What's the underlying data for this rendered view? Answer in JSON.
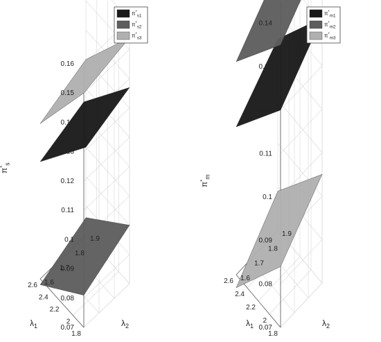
{
  "chart_data": [
    {
      "type": "surface3d",
      "zlabel": "π*s",
      "xlabel": "λ1",
      "ylabel": "λ2",
      "x_ticks": [
        "1.8",
        "2",
        "2.2",
        "2.4",
        "2.6"
      ],
      "y_ticks": [
        "1.6",
        "1.7",
        "1.8",
        "1.9"
      ],
      "z_ticks": [
        "0.07",
        "0.08",
        "0.09",
        "0.1",
        "0.11",
        "0.12",
        "0.13",
        "0.14",
        "0.15",
        "0.16"
      ],
      "xlim": [
        1.8,
        2.6
      ],
      "ylim": [
        1.6,
        1.9
      ],
      "zlim": [
        0.07,
        0.16
      ],
      "legend": [
        "π*s1",
        "π*s2",
        "π*s3"
      ],
      "legend_position": "top-right",
      "grid": true,
      "series": [
        {
          "name": "π*s1",
          "color": "#1a1a1a",
          "corners": {
            "x1.8_y1.6": 0.147,
            "x2.6_y1.6": 0.11,
            "x1.8_y1.9": 0.137,
            "x2.6_y1.9": 0.1
          }
        },
        {
          "name": "π*s2",
          "color": "#5e5e5e",
          "corners": {
            "x1.8_y1.6": 0.081,
            "x2.6_y1.6": 0.068,
            "x1.8_y1.9": 0.09,
            "x2.6_y1.9": 0.076
          }
        },
        {
          "name": "π*s3",
          "color": "#b0b0b0",
          "corners": {
            "x1.8_y1.6": 0.15,
            "x2.6_y1.6": 0.123,
            "x1.8_y1.9": 0.154,
            "x2.6_y1.9": 0.13
          }
        }
      ]
    },
    {
      "type": "surface3d",
      "zlabel": "π*m",
      "xlabel": "λ1",
      "ylabel": "λ2",
      "x_ticks": [
        "1.8",
        "2",
        "2.2",
        "2.4",
        "2.6"
      ],
      "y_ticks": [
        "1.6",
        "1.7",
        "1.8",
        "1.9"
      ],
      "z_ticks": [
        "0.07",
        "0.08",
        "0.09",
        "0.1",
        "0.11",
        "0.12",
        "0.13",
        "0.14"
      ],
      "xlim": [
        1.8,
        2.6
      ],
      "ylim": [
        1.6,
        1.9
      ],
      "zlim": [
        0.07,
        0.145
      ],
      "legend": [
        "π*m1",
        "π*m2",
        "π*m3"
      ],
      "legend_position": "top-right",
      "grid": true,
      "series": [
        {
          "name": "π*m1",
          "color": "#1a1a1a",
          "corners": {
            "x1.8_y1.6": 0.12,
            "x2.6_y1.6": 0.104,
            "x1.8_y1.9": 0.131,
            "x2.6_y1.9": 0.114
          }
        },
        {
          "name": "π*m2",
          "color": "#5e5e5e",
          "corners": {
            "x1.8_y1.6": 0.135,
            "x2.6_y1.6": 0.119,
            "x1.8_y1.9": 0.146,
            "x2.6_y1.9": 0.13
          }
        },
        {
          "name": "π*m3",
          "color": "#b0b0b0",
          "corners": {
            "x1.8_y1.6": 0.084,
            "x2.6_y1.6": 0.067,
            "x1.8_y1.9": 0.095,
            "x2.6_y1.9": 0.079
          }
        }
      ]
    }
  ]
}
